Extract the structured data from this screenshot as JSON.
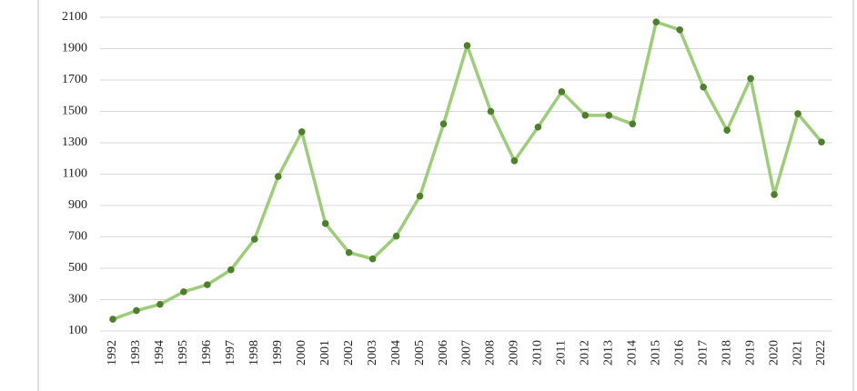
{
  "chart_data": {
    "type": "line",
    "categories": [
      "1992",
      "1993",
      "1994",
      "1995",
      "1996",
      "1997",
      "1998",
      "1999",
      "2000",
      "2001",
      "2002",
      "2003",
      "2004",
      "2005",
      "2006",
      "2007",
      "2008",
      "2009",
      "2010",
      "2011",
      "2012",
      "2013",
      "2014",
      "2015",
      "2016",
      "2017",
      "2018",
      "2019",
      "2020",
      "2021",
      "2022"
    ],
    "values": [
      175,
      230,
      270,
      350,
      395,
      490,
      685,
      1085,
      1370,
      785,
      600,
      560,
      705,
      960,
      1420,
      1920,
      1500,
      1185,
      1400,
      1625,
      1475,
      1475,
      1420,
      2070,
      2020,
      1655,
      1380,
      1710,
      970,
      1485,
      1305
    ],
    "color": "#9dcc7a",
    "marker_color": "#4f7f2e",
    "ylim": [
      100,
      2100
    ],
    "yticks": [
      100,
      300,
      500,
      700,
      900,
      1100,
      1300,
      1500,
      1700,
      1900,
      2100
    ],
    "grid": true
  }
}
